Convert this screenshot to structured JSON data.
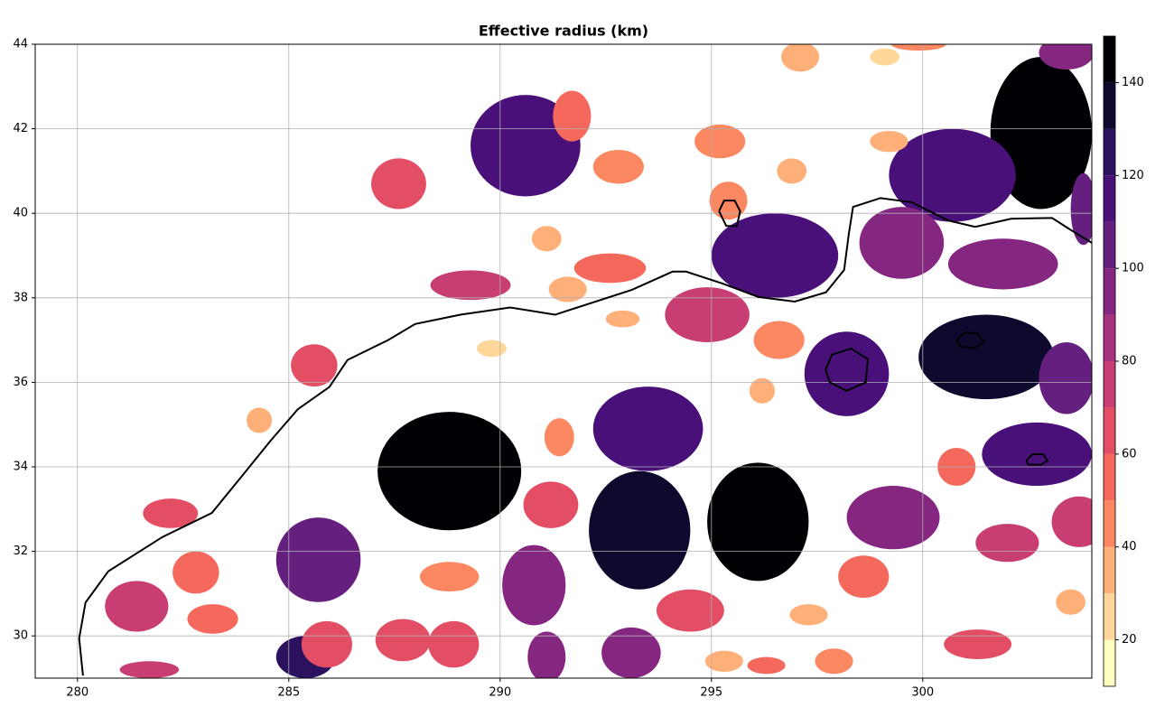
{
  "chart_data": {
    "type": "contourf",
    "title": "Effective radius (km)",
    "xlim": [
      279,
      304
    ],
    "xticks": [
      280,
      285,
      290,
      295,
      300
    ],
    "ylim": [
      29,
      44
    ],
    "yticks": [
      30,
      32,
      34,
      36,
      38,
      40,
      42,
      44
    ],
    "grid": true,
    "colorbar": {
      "levels": [
        10,
        20,
        30,
        40,
        50,
        60,
        70,
        80,
        90,
        100,
        110,
        120,
        130,
        140,
        150
      ],
      "colors": [
        "#fcfdbf",
        "#fed799",
        "#feb078",
        "#fb8861",
        "#f4695c",
        "#e34e65",
        "#c83e73",
        "#a8327d",
        "#852781",
        "#65207f",
        "#4a1079",
        "#2c115f",
        "#0e0a2e",
        "#000004"
      ],
      "ticks": [
        20,
        40,
        60,
        80,
        100,
        120,
        140
      ]
    },
    "blobs": {
      "x": [
        302.8,
        288.8,
        296.1,
        293.3,
        301.5,
        285.4,
        290.6,
        300.7,
        296.5,
        293.5,
        298.2,
        302.7,
        285.7,
        303.4,
        303.8,
        299.5,
        301.9,
        299.3,
        290.8,
        293.1,
        291.1,
        294.9,
        289.3,
        281.4,
        302.0,
        303.7,
        281.7,
        287.6,
        291.2,
        285.6,
        282.2,
        285.9,
        287.7,
        288.9,
        294.5,
        301.3,
        291.7,
        292.6,
        282.8,
        283.2,
        298.6,
        300.8,
        296.3,
        292.8,
        295.2,
        295.4,
        296.6,
        291.4,
        288.8,
        297.9,
        299.9,
        297.1,
        296.9,
        299.2,
        291.1,
        291.6,
        292.9,
        284.3,
        296.2,
        297.3,
        303.5,
        295.3,
        299.1,
        289.8,
        303.4
      ],
      "y": [
        41.9,
        33.9,
        32.7,
        32.5,
        36.6,
        29.5,
        41.6,
        40.9,
        39.0,
        34.9,
        36.2,
        34.3,
        31.8,
        36.1,
        40.1,
        39.3,
        38.8,
        32.8,
        31.2,
        29.6,
        29.5,
        37.6,
        38.3,
        30.7,
        32.2,
        32.7,
        29.2,
        40.7,
        33.1,
        36.4,
        32.9,
        29.8,
        29.9,
        29.8,
        30.6,
        29.8,
        42.3,
        38.7,
        31.5,
        30.4,
        31.4,
        34.0,
        29.3,
        41.1,
        41.7,
        40.3,
        37.0,
        34.7,
        31.4,
        29.4,
        44.0,
        43.7,
        41.0,
        41.7,
        39.4,
        38.2,
        37.5,
        35.1,
        35.8,
        30.5,
        30.8,
        29.4,
        43.7,
        36.8,
        43.8
      ],
      "rx": [
        1.2,
        1.7,
        1.2,
        1.2,
        1.6,
        0.7,
        1.3,
        1.5,
        1.5,
        1.3,
        1.0,
        1.3,
        1.0,
        0.65,
        0.3,
        1.0,
        1.3,
        1.1,
        0.75,
        0.7,
        0.45,
        1.0,
        0.95,
        0.75,
        0.75,
        0.65,
        0.7,
        0.65,
        0.65,
        0.55,
        0.65,
        0.6,
        0.65,
        0.6,
        0.8,
        0.8,
        0.45,
        0.85,
        0.55,
        0.6,
        0.6,
        0.45,
        0.45,
        0.6,
        0.6,
        0.45,
        0.6,
        0.35,
        0.7,
        0.45,
        0.65,
        0.45,
        0.35,
        0.45,
        0.35,
        0.45,
        0.4,
        0.3,
        0.3,
        0.45,
        0.35,
        0.45,
        0.35,
        0.35,
        0.65
      ],
      "ry": [
        1.8,
        1.4,
        1.4,
        1.4,
        1.0,
        0.5,
        1.2,
        1.1,
        1.0,
        1.0,
        1.0,
        0.75,
        1.0,
        0.85,
        0.85,
        0.85,
        0.6,
        0.75,
        0.95,
        0.6,
        0.6,
        0.65,
        0.35,
        0.6,
        0.45,
        0.6,
        0.2,
        0.6,
        0.55,
        0.5,
        0.35,
        0.55,
        0.5,
        0.55,
        0.5,
        0.35,
        0.6,
        0.35,
        0.5,
        0.35,
        0.5,
        0.45,
        0.2,
        0.4,
        0.4,
        0.45,
        0.45,
        0.45,
        0.35,
        0.3,
        0.15,
        0.35,
        0.3,
        0.25,
        0.3,
        0.3,
        0.2,
        0.3,
        0.3,
        0.25,
        0.3,
        0.25,
        0.2,
        0.2,
        0.4
      ],
      "values": [
        145,
        145,
        145,
        135,
        135,
        125,
        115,
        115,
        115,
        115,
        115,
        115,
        105,
        105,
        105,
        95,
        95,
        95,
        95,
        95,
        95,
        75,
        75,
        75,
        75,
        75,
        75,
        65,
        65,
        65,
        65,
        65,
        65,
        65,
        65,
        65,
        55,
        55,
        55,
        55,
        55,
        55,
        55,
        45,
        45,
        45,
        45,
        45,
        45,
        45,
        45,
        35,
        35,
        35,
        35,
        35,
        35,
        35,
        35,
        35,
        35,
        35,
        25,
        25,
        95
      ]
    },
    "contour_lines": [
      {
        "x": [
          280.13,
          280.04,
          280.19,
          280.73,
          282.01,
          283.18,
          283.93,
          284.57,
          285.21,
          285.96,
          286.39,
          287.35,
          287.99,
          289.06,
          290.24,
          291.3,
          293.12,
          294.08,
          294.4,
          295.26,
          296.11,
          296.97,
          297.71,
          298.14,
          298.25,
          298.35,
          299.0,
          299.74,
          300.6,
          301.24,
          302.09,
          303.06,
          303.48,
          304.0
        ],
        "y": [
          29.06,
          29.94,
          30.79,
          31.53,
          32.34,
          32.91,
          33.83,
          34.62,
          35.36,
          35.89,
          36.53,
          37.0,
          37.38,
          37.6,
          37.77,
          37.6,
          38.19,
          38.62,
          38.62,
          38.34,
          38.02,
          37.91,
          38.13,
          38.66,
          39.51,
          40.15,
          40.36,
          40.26,
          39.83,
          39.68,
          39.87,
          39.89,
          39.62,
          39.3
        ]
      },
      {
        "x": [
          295.18,
          295.3,
          295.55,
          295.68,
          295.6,
          295.35,
          295.18
        ],
        "y": [
          40.05,
          40.3,
          40.3,
          40.05,
          39.7,
          39.7,
          40.05
        ]
      },
      {
        "x": [
          297.7,
          297.85,
          298.3,
          298.7,
          298.65,
          298.2,
          297.8,
          297.7
        ],
        "y": [
          36.3,
          36.65,
          36.8,
          36.55,
          36.0,
          35.8,
          36.0,
          36.3
        ]
      },
      {
        "x": [
          300.8,
          301.0,
          301.3,
          301.45,
          301.2,
          300.9,
          300.8
        ],
        "y": [
          37.0,
          37.18,
          37.15,
          36.95,
          36.8,
          36.85,
          37.0
        ]
      },
      {
        "x": [
          302.45,
          302.6,
          302.85,
          302.95,
          302.8,
          302.5,
          302.45
        ],
        "y": [
          34.15,
          34.3,
          34.3,
          34.15,
          34.05,
          34.05,
          34.15
        ]
      }
    ]
  }
}
